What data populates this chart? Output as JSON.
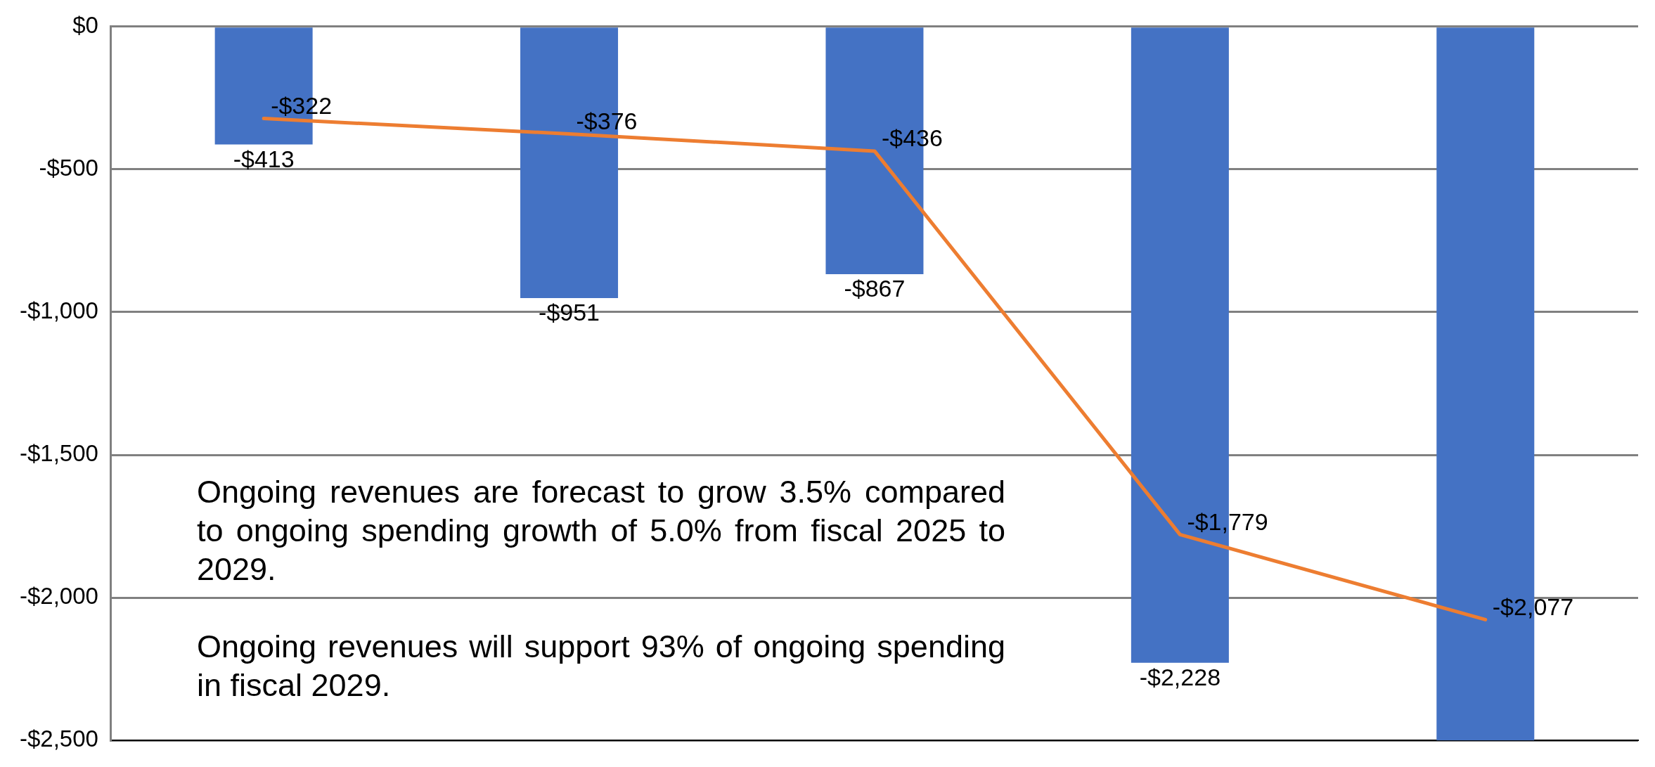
{
  "chart_data": {
    "type": "bar",
    "categories": [
      null,
      null,
      null,
      null,
      null
    ],
    "series": [
      {
        "color": "#4472c4",
        "values": [
          -413,
          -951,
          -867,
          -2228,
          -2500
        ],
        "value_labels": [
          "-$413",
          "-$951",
          "-$867",
          "-$2,228",
          null
        ]
      },
      {
        "type": "line",
        "color": "#ed7d31",
        "values": [
          -322,
          -376,
          -436,
          -1779,
          -2077
        ],
        "value_labels": [
          "-$322",
          "-$376",
          "-$436",
          "-$1,779",
          "-$2,077"
        ]
      }
    ],
    "ylim": [
      -2500,
      0
    ],
    "yticks": [
      {
        "value": -2500,
        "label": "-$2,500"
      },
      {
        "value": -2000,
        "label": "-$2,000"
      },
      {
        "value": -1500,
        "label": "-$1,500"
      },
      {
        "value": -1000,
        "label": "-$1,000"
      },
      {
        "value": -500,
        "label": "-$500"
      },
      {
        "value": 0,
        "label": "$0"
      }
    ],
    "grid": "y",
    "legend": false,
    "marker": "none",
    "tick_labels": "y",
    "annotations": [
      "Ongoing revenues are forecast to grow 3.5% compared to ongoing spending growth of 5.0% from fiscal 2025 to 2029.",
      "Ongoing revenues will support 93% of ongoing spending in fiscal 2029."
    ]
  }
}
